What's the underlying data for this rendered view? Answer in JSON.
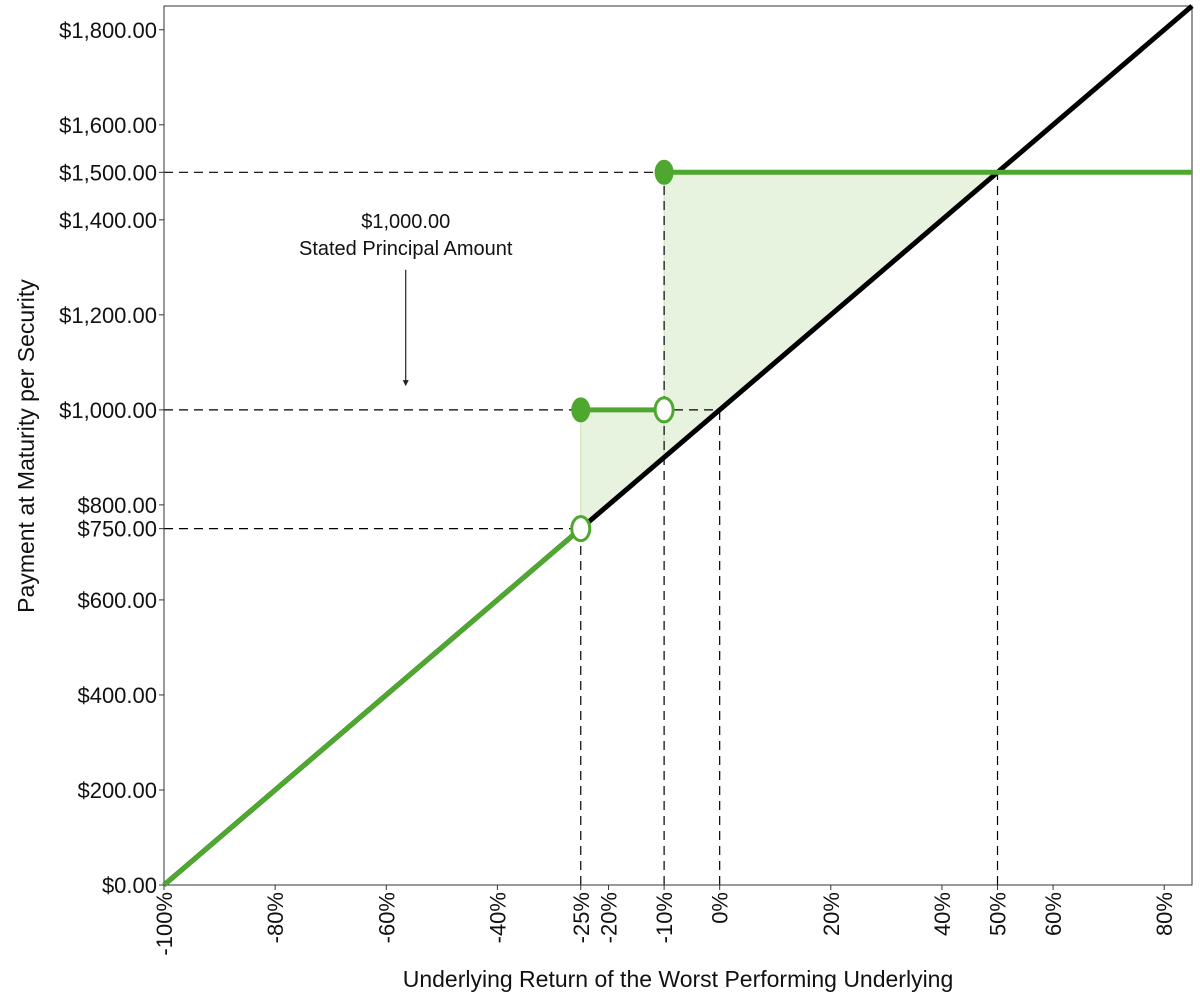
{
  "chart_data": {
    "type": "line",
    "xlabel": "Underlying Return of the Worst Performing Underlying",
    "ylabel": "Payment at Maturity per Security",
    "xlim": [
      -100,
      85
    ],
    "ylim": [
      0,
      1850
    ],
    "x_ticks": [
      -100,
      -80,
      -60,
      -40,
      -25,
      -20,
      -10,
      0,
      20,
      40,
      50,
      60,
      80
    ],
    "x_tick_labels": [
      "-100%",
      "-80%",
      "-60%",
      "-40%",
      "-25%",
      "-20%",
      "-10%",
      "0%",
      "20%",
      "40%",
      "50%",
      "60%",
      "80%"
    ],
    "y_ticks": [
      0,
      200,
      400,
      600,
      750,
      800,
      1000,
      1200,
      1400,
      1500,
      1600,
      1800
    ],
    "y_tick_labels": [
      "$0.00",
      "$200.00",
      "$400.00",
      "$600.00",
      "$750.00",
      "$800.00",
      "$1,000.00",
      "$1,200.00",
      "$1,400.00",
      "$1,500.00",
      "$1,600.00",
      "$1,800.00"
    ],
    "grid": false,
    "series": [
      {
        "role": "underlying",
        "color": "#000000",
        "points": [
          [
            -100,
            0
          ],
          [
            85,
            1850
          ]
        ]
      },
      {
        "role": "payoff",
        "color": "#4ea72e",
        "segments": [
          {
            "points": [
              [
                -100,
                0
              ],
              [
                -25,
                750
              ]
            ],
            "start_marker": "none",
            "end_marker": "open"
          },
          {
            "points": [
              [
                -25,
                1000
              ],
              [
                -10,
                1000
              ]
            ],
            "start_marker": "filled",
            "end_marker": "open"
          },
          {
            "points": [
              [
                -10,
                1500
              ],
              [
                85,
                1500
              ]
            ],
            "start_marker": "filled",
            "end_marker": "none"
          }
        ]
      }
    ],
    "shaded_regions": [
      {
        "color": "#e8f3df",
        "points": [
          [
            -25,
            1000
          ],
          [
            -10,
            1000
          ],
          [
            -10,
            900
          ],
          [
            -25,
            750
          ]
        ]
      },
      {
        "color": "#e8f3df",
        "points": [
          [
            -10,
            1500
          ],
          [
            50,
            1500
          ],
          [
            -10,
            900
          ]
        ]
      }
    ],
    "reference_lines": [
      {
        "orientation": "h",
        "y": 1500,
        "x_to": -10
      },
      {
        "orientation": "h",
        "y": 1000,
        "x_to": 0
      },
      {
        "orientation": "h",
        "y": 750,
        "x_to": -25
      },
      {
        "orientation": "v",
        "x": -25,
        "y_from": 0,
        "y_to": 750
      },
      {
        "orientation": "v",
        "x": -10,
        "y_from": 0,
        "y_to": 1500
      },
      {
        "orientation": "v",
        "x": 0,
        "y_from": 0,
        "y_to": 1000
      },
      {
        "orientation": "v",
        "x": 50,
        "y_from": 0,
        "y_to": 1500
      }
    ],
    "annotation": {
      "lines": [
        "$1,000.00",
        "Stated Principal Amount"
      ],
      "anchor": [
        -56.5,
        1320
      ],
      "arrow_to": [
        -56.5,
        1050
      ]
    }
  }
}
